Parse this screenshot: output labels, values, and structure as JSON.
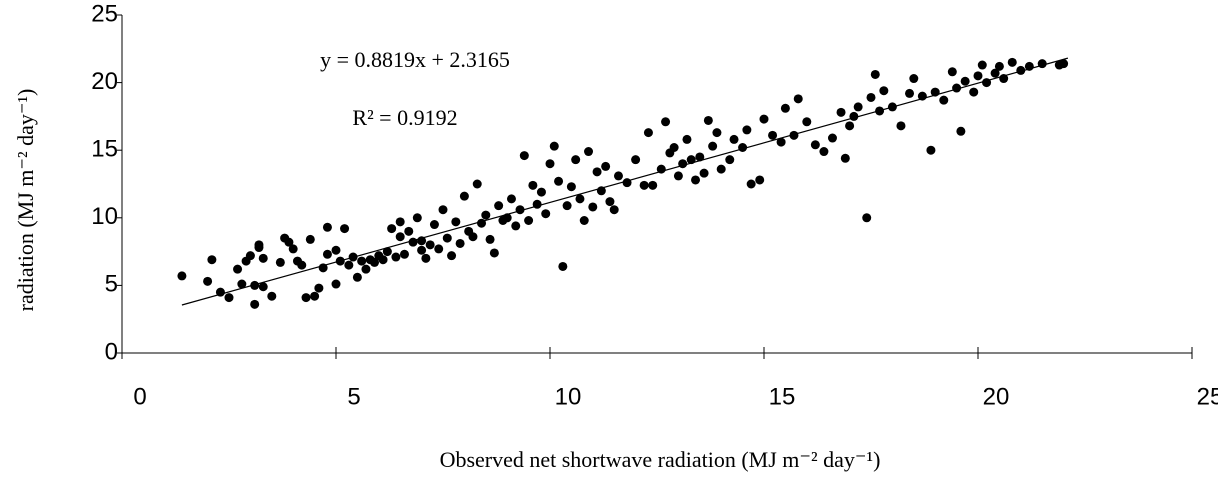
{
  "chart_data": {
    "type": "scatter",
    "xlabel": "Observed net shortwave radiation (MJ m⁻² day⁻¹)",
    "ylabel": "radiation (MJ m⁻² day⁻¹)",
    "annotations": [
      "y = 0.8819x + 2.3165",
      "R² = 0.9192"
    ],
    "color": "#000000",
    "xlim": [
      0,
      25
    ],
    "xticks": [
      0,
      5,
      10,
      15,
      20,
      25
    ],
    "ylim": [
      0,
      25
    ],
    "yticks": [
      0,
      5,
      10,
      15,
      20,
      25
    ],
    "grid": false,
    "trendline": {
      "x": [
        1.4,
        22.1
      ],
      "y": [
        3.55,
        21.81
      ],
      "color": "#000000"
    },
    "x": [
      1.4,
      2.0,
      2.1,
      2.3,
      2.5,
      2.7,
      2.8,
      2.9,
      3.0,
      3.1,
      3.1,
      3.2,
      3.2,
      3.3,
      3.3,
      3.5,
      3.7,
      3.8,
      3.9,
      4.0,
      4.1,
      4.2,
      4.3,
      4.4,
      4.5,
      4.6,
      4.7,
      4.8,
      4.8,
      5.0,
      5.0,
      5.1,
      5.2,
      5.3,
      5.4,
      5.5,
      5.6,
      5.7,
      5.8,
      5.9,
      6.0,
      6.1,
      6.2,
      6.3,
      6.4,
      6.5,
      6.5,
      6.6,
      6.7,
      6.8,
      6.9,
      7.0,
      7.0,
      7.1,
      7.2,
      7.3,
      7.4,
      7.5,
      7.6,
      7.7,
      7.8,
      7.9,
      8.0,
      8.1,
      8.2,
      8.3,
      8.4,
      8.5,
      8.6,
      8.7,
      8.8,
      8.9,
      9.0,
      9.1,
      9.2,
      9.3,
      9.4,
      9.5,
      9.6,
      9.7,
      9.8,
      9.9,
      10.0,
      10.1,
      10.2,
      10.3,
      10.4,
      10.5,
      10.6,
      10.7,
      10.8,
      10.9,
      11.0,
      11.1,
      11.2,
      11.3,
      11.4,
      11.5,
      11.6,
      11.8,
      12.0,
      12.2,
      12.3,
      12.4,
      12.6,
      12.7,
      12.8,
      12.9,
      13.0,
      13.1,
      13.2,
      13.3,
      13.4,
      13.5,
      13.6,
      13.7,
      13.8,
      13.9,
      14.0,
      14.2,
      14.3,
      14.5,
      14.6,
      14.7,
      14.9,
      15.0,
      15.2,
      15.4,
      15.5,
      15.7,
      15.8,
      16.0,
      16.2,
      16.4,
      16.6,
      16.8,
      16.9,
      17.0,
      17.1,
      17.2,
      17.4,
      17.5,
      17.6,
      17.7,
      17.8,
      18.0,
      18.2,
      18.4,
      18.5,
      18.7,
      18.9,
      19.0,
      19.2,
      19.4,
      19.5,
      19.6,
      19.7,
      19.9,
      20.0,
      20.1,
      20.2,
      20.4,
      20.5,
      20.6,
      20.8,
      21.0,
      21.2,
      21.5,
      21.9,
      22.0
    ],
    "values": [
      5.7,
      5.3,
      6.9,
      4.5,
      4.1,
      6.2,
      5.1,
      6.8,
      7.2,
      5.0,
      3.6,
      7.8,
      8.0,
      4.9,
      7.0,
      4.2,
      6.7,
      8.5,
      8.2,
      7.7,
      6.8,
      6.5,
      4.1,
      8.4,
      4.2,
      4.8,
      6.3,
      9.3,
      7.3,
      7.6,
      5.1,
      6.8,
      9.2,
      6.5,
      7.1,
      5.6,
      6.8,
      6.2,
      6.9,
      6.7,
      7.2,
      6.9,
      7.5,
      9.2,
      7.1,
      8.6,
      9.7,
      7.3,
      9.0,
      8.2,
      10.0,
      7.6,
      8.3,
      7.0,
      8.0,
      9.5,
      7.7,
      10.6,
      8.5,
      7.2,
      9.7,
      8.1,
      11.6,
      9.0,
      8.6,
      12.5,
      9.6,
      10.2,
      8.4,
      7.4,
      10.9,
      9.8,
      10.0,
      11.4,
      9.4,
      10.6,
      14.6,
      9.8,
      12.4,
      11.0,
      11.9,
      10.3,
      14.0,
      15.3,
      12.7,
      6.4,
      10.9,
      12.3,
      14.3,
      11.4,
      9.8,
      14.9,
      10.8,
      13.4,
      12.0,
      13.8,
      11.2,
      10.6,
      13.1,
      12.6,
      14.3,
      12.4,
      16.3,
      12.4,
      13.6,
      17.1,
      14.8,
      15.2,
      13.1,
      14.0,
      15.8,
      14.3,
      12.8,
      14.5,
      13.3,
      17.2,
      15.3,
      16.3,
      13.6,
      14.3,
      15.8,
      15.2,
      16.5,
      12.5,
      12.8,
      17.3,
      16.1,
      15.6,
      18.1,
      16.1,
      18.8,
      17.1,
      15.4,
      14.9,
      15.9,
      17.8,
      14.4,
      16.8,
      17.5,
      18.2,
      10.0,
      18.9,
      20.6,
      17.9,
      19.4,
      18.2,
      16.8,
      19.2,
      20.3,
      19.0,
      15.0,
      19.3,
      18.7,
      20.8,
      19.6,
      16.4,
      20.1,
      19.3,
      20.5,
      21.3,
      20.0,
      20.7,
      21.2,
      20.3,
      21.5,
      20.9,
      21.2,
      21.4,
      21.3,
      21.4
    ]
  }
}
